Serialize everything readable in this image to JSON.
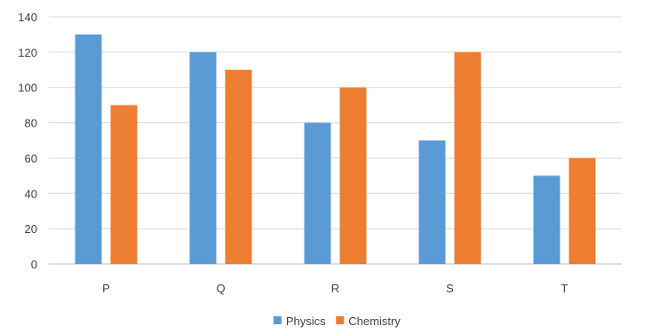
{
  "chart_data": {
    "type": "bar",
    "title": "",
    "xlabel": "",
    "ylabel": "",
    "categories": [
      "P",
      "Q",
      "R",
      "S",
      "T"
    ],
    "series": [
      {
        "name": "Physics",
        "color": "#5b9bd5",
        "values": [
          130,
          120,
          80,
          70,
          50
        ]
      },
      {
        "name": "Chemistry",
        "color": "#ed7d31",
        "values": [
          90,
          110,
          100,
          120,
          60
        ]
      }
    ],
    "ylim": [
      0,
      140
    ],
    "yticks": [
      "0",
      "20",
      "40",
      "60",
      "80",
      "100",
      "120",
      "140"
    ],
    "grid": true,
    "legend_position": "bottom"
  }
}
